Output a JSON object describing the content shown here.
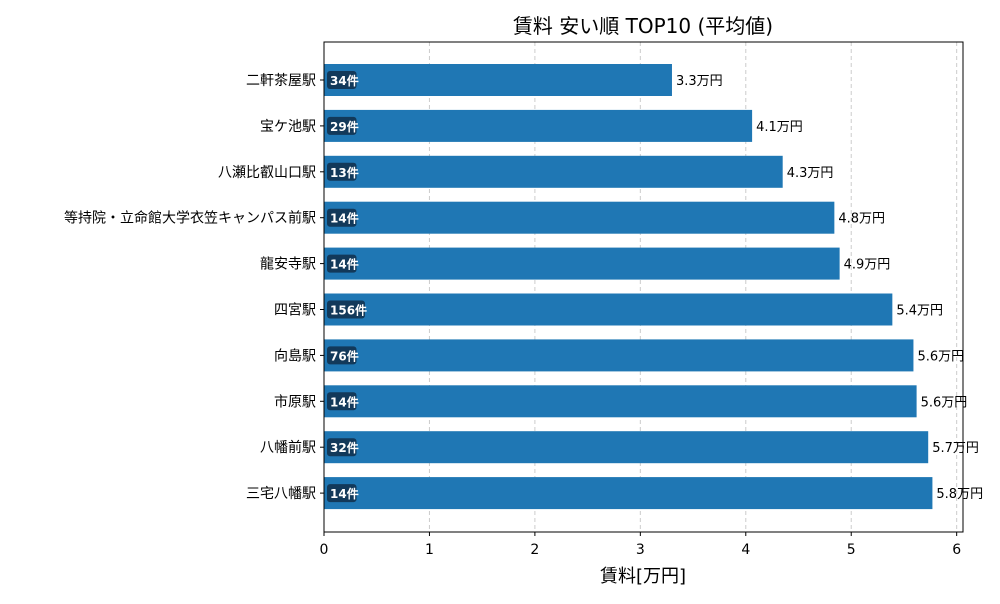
{
  "chart_data": {
    "type": "bar",
    "orientation": "horizontal",
    "title": "賃料 安い順 TOP10 (平均値)",
    "xlabel": "賃料[万円]",
    "ylabel": "",
    "xlim": [
      0,
      6.06
    ],
    "xticks": [
      "0",
      "1",
      "2",
      "3",
      "4",
      "5",
      "6"
    ],
    "grid": "x, dashed",
    "bar_color": "#1f77b4",
    "badge_color": "#12395a",
    "categories": [
      "二軒茶屋駅",
      "宝ケ池駅",
      "八瀬比叡山口駅",
      "等持院・立命館大学衣笠キャンパス前駅",
      "龍安寺駅",
      "四宮駅",
      "向島駅",
      "市原駅",
      "八幡前駅",
      "三宅八幡駅"
    ],
    "values": [
      3.3,
      4.06,
      4.35,
      4.84,
      4.89,
      5.39,
      5.59,
      5.62,
      5.73,
      5.77
    ],
    "value_labels": [
      "3.3万円",
      "4.1万円",
      "4.3万円",
      "4.8万円",
      "4.9万円",
      "5.4万円",
      "5.6万円",
      "5.6万円",
      "5.7万円",
      "5.8万円"
    ],
    "count_labels": [
      "34件",
      "29件",
      "13件",
      "14件",
      "14件",
      "156件",
      "76件",
      "14件",
      "32件",
      "14件"
    ]
  }
}
